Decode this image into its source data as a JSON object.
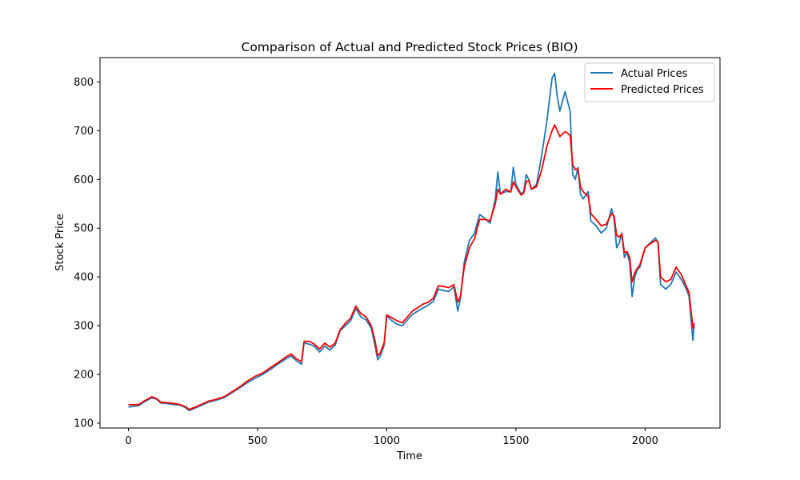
{
  "chart_data": {
    "type": "line",
    "title": "Comparison of Actual and Predicted Stock Prices (BIO)",
    "xlabel": "Time",
    "ylabel": "Stock Price",
    "xlim": [
      -110,
      2290
    ],
    "ylim": [
      90,
      850
    ],
    "xticks": [
      0,
      500,
      1000,
      1500,
      2000
    ],
    "yticks": [
      100,
      200,
      300,
      400,
      500,
      600,
      700,
      800
    ],
    "grid": false,
    "legend_position": "top-right",
    "series": [
      {
        "name": "Actual Prices",
        "color": "#1f77b4",
        "points": [
          [
            0,
            133
          ],
          [
            40,
            136
          ],
          [
            60,
            143
          ],
          [
            90,
            152
          ],
          [
            110,
            149
          ],
          [
            125,
            141
          ],
          [
            150,
            140
          ],
          [
            180,
            138
          ],
          [
            200,
            137
          ],
          [
            220,
            132
          ],
          [
            235,
            126
          ],
          [
            255,
            130
          ],
          [
            280,
            136
          ],
          [
            310,
            143
          ],
          [
            340,
            147
          ],
          [
            370,
            152
          ],
          [
            400,
            162
          ],
          [
            430,
            172
          ],
          [
            460,
            183
          ],
          [
            490,
            192
          ],
          [
            520,
            200
          ],
          [
            550,
            210
          ],
          [
            570,
            218
          ],
          [
            590,
            225
          ],
          [
            610,
            232
          ],
          [
            630,
            238
          ],
          [
            650,
            228
          ],
          [
            670,
            221
          ],
          [
            680,
            265
          ],
          [
            700,
            262
          ],
          [
            720,
            258
          ],
          [
            740,
            246
          ],
          [
            760,
            258
          ],
          [
            780,
            250
          ],
          [
            800,
            260
          ],
          [
            820,
            290
          ],
          [
            840,
            300
          ],
          [
            860,
            310
          ],
          [
            880,
            335
          ],
          [
            900,
            318
          ],
          [
            920,
            312
          ],
          [
            940,
            295
          ],
          [
            955,
            258
          ],
          [
            965,
            230
          ],
          [
            975,
            238
          ],
          [
            990,
            260
          ],
          [
            1000,
            320
          ],
          [
            1020,
            310
          ],
          [
            1040,
            303
          ],
          [
            1060,
            300
          ],
          [
            1080,
            312
          ],
          [
            1100,
            323
          ],
          [
            1120,
            330
          ],
          [
            1140,
            336
          ],
          [
            1160,
            342
          ],
          [
            1180,
            350
          ],
          [
            1200,
            375
          ],
          [
            1220,
            372
          ],
          [
            1240,
            370
          ],
          [
            1260,
            380
          ],
          [
            1275,
            330
          ],
          [
            1285,
            355
          ],
          [
            1300,
            430
          ],
          [
            1320,
            475
          ],
          [
            1340,
            490
          ],
          [
            1350,
            510
          ],
          [
            1360,
            528
          ],
          [
            1380,
            520
          ],
          [
            1400,
            510
          ],
          [
            1420,
            560
          ],
          [
            1430,
            615
          ],
          [
            1440,
            570
          ],
          [
            1460,
            575
          ],
          [
            1480,
            575
          ],
          [
            1490,
            625
          ],
          [
            1500,
            590
          ],
          [
            1520,
            570
          ],
          [
            1530,
            575
          ],
          [
            1540,
            610
          ],
          [
            1550,
            600
          ],
          [
            1560,
            580
          ],
          [
            1580,
            590
          ],
          [
            1600,
            650
          ],
          [
            1620,
            720
          ],
          [
            1640,
            808
          ],
          [
            1650,
            818
          ],
          [
            1660,
            770
          ],
          [
            1670,
            740
          ],
          [
            1690,
            780
          ],
          [
            1700,
            760
          ],
          [
            1710,
            740
          ],
          [
            1720,
            610
          ],
          [
            1730,
            600
          ],
          [
            1740,
            625
          ],
          [
            1750,
            570
          ],
          [
            1760,
            560
          ],
          [
            1780,
            575
          ],
          [
            1790,
            515
          ],
          [
            1810,
            505
          ],
          [
            1830,
            490
          ],
          [
            1850,
            500
          ],
          [
            1870,
            540
          ],
          [
            1880,
            520
          ],
          [
            1890,
            460
          ],
          [
            1900,
            470
          ],
          [
            1910,
            490
          ],
          [
            1920,
            440
          ],
          [
            1930,
            450
          ],
          [
            1940,
            430
          ],
          [
            1950,
            360
          ],
          [
            1960,
            400
          ],
          [
            1970,
            415
          ],
          [
            1980,
            420
          ],
          [
            2000,
            460
          ],
          [
            2020,
            470
          ],
          [
            2040,
            480
          ],
          [
            2050,
            470
          ],
          [
            2060,
            385
          ],
          [
            2080,
            375
          ],
          [
            2100,
            385
          ],
          [
            2120,
            410
          ],
          [
            2140,
            395
          ],
          [
            2160,
            375
          ],
          [
            2170,
            360
          ],
          [
            2180,
            300
          ],
          [
            2185,
            270
          ],
          [
            2190,
            300
          ]
        ]
      },
      {
        "name": "Predicted Prices",
        "color": "#ff0000",
        "points": [
          [
            0,
            138
          ],
          [
            40,
            138
          ],
          [
            60,
            145
          ],
          [
            90,
            154
          ],
          [
            110,
            150
          ],
          [
            125,
            143
          ],
          [
            150,
            142
          ],
          [
            180,
            140
          ],
          [
            200,
            138
          ],
          [
            220,
            134
          ],
          [
            235,
            128
          ],
          [
            255,
            132
          ],
          [
            280,
            138
          ],
          [
            310,
            145
          ],
          [
            340,
            149
          ],
          [
            370,
            154
          ],
          [
            400,
            164
          ],
          [
            430,
            174
          ],
          [
            460,
            186
          ],
          [
            490,
            196
          ],
          [
            520,
            203
          ],
          [
            550,
            214
          ],
          [
            570,
            221
          ],
          [
            590,
            228
          ],
          [
            610,
            236
          ],
          [
            630,
            242
          ],
          [
            650,
            232
          ],
          [
            670,
            226
          ],
          [
            680,
            268
          ],
          [
            700,
            268
          ],
          [
            720,
            262
          ],
          [
            740,
            252
          ],
          [
            760,
            264
          ],
          [
            780,
            256
          ],
          [
            800,
            264
          ],
          [
            820,
            292
          ],
          [
            840,
            305
          ],
          [
            860,
            315
          ],
          [
            880,
            340
          ],
          [
            900,
            325
          ],
          [
            920,
            318
          ],
          [
            940,
            300
          ],
          [
            955,
            268
          ],
          [
            965,
            238
          ],
          [
            975,
            244
          ],
          [
            990,
            265
          ],
          [
            1000,
            322
          ],
          [
            1020,
            316
          ],
          [
            1040,
            310
          ],
          [
            1060,
            306
          ],
          [
            1080,
            318
          ],
          [
            1100,
            330
          ],
          [
            1120,
            337
          ],
          [
            1140,
            344
          ],
          [
            1160,
            348
          ],
          [
            1180,
            356
          ],
          [
            1200,
            382
          ],
          [
            1220,
            380
          ],
          [
            1240,
            378
          ],
          [
            1260,
            384
          ],
          [
            1275,
            348
          ],
          [
            1285,
            360
          ],
          [
            1300,
            420
          ],
          [
            1320,
            460
          ],
          [
            1340,
            478
          ],
          [
            1350,
            500
          ],
          [
            1360,
            518
          ],
          [
            1380,
            518
          ],
          [
            1400,
            515
          ],
          [
            1420,
            550
          ],
          [
            1430,
            580
          ],
          [
            1440,
            570
          ],
          [
            1460,
            580
          ],
          [
            1480,
            574
          ],
          [
            1490,
            595
          ],
          [
            1500,
            585
          ],
          [
            1520,
            568
          ],
          [
            1530,
            572
          ],
          [
            1540,
            595
          ],
          [
            1550,
            598
          ],
          [
            1560,
            580
          ],
          [
            1580,
            585
          ],
          [
            1600,
            620
          ],
          [
            1620,
            668
          ],
          [
            1640,
            700
          ],
          [
            1650,
            712
          ],
          [
            1660,
            700
          ],
          [
            1670,
            688
          ],
          [
            1690,
            698
          ],
          [
            1700,
            695
          ],
          [
            1710,
            690
          ],
          [
            1720,
            630
          ],
          [
            1730,
            620
          ],
          [
            1740,
            622
          ],
          [
            1750,
            585
          ],
          [
            1760,
            575
          ],
          [
            1780,
            565
          ],
          [
            1790,
            530
          ],
          [
            1810,
            518
          ],
          [
            1830,
            505
          ],
          [
            1850,
            508
          ],
          [
            1870,
            530
          ],
          [
            1880,
            525
          ],
          [
            1890,
            485
          ],
          [
            1900,
            482
          ],
          [
            1910,
            488
          ],
          [
            1920,
            450
          ],
          [
            1930,
            452
          ],
          [
            1940,
            440
          ],
          [
            1950,
            390
          ],
          [
            1960,
            408
          ],
          [
            1970,
            418
          ],
          [
            1980,
            425
          ],
          [
            2000,
            460
          ],
          [
            2020,
            468
          ],
          [
            2040,
            475
          ],
          [
            2050,
            472
          ],
          [
            2060,
            400
          ],
          [
            2080,
            390
          ],
          [
            2100,
            395
          ],
          [
            2120,
            420
          ],
          [
            2140,
            405
          ],
          [
            2160,
            380
          ],
          [
            2170,
            368
          ],
          [
            2180,
            320
          ],
          [
            2185,
            295
          ],
          [
            2190,
            305
          ]
        ]
      }
    ]
  }
}
